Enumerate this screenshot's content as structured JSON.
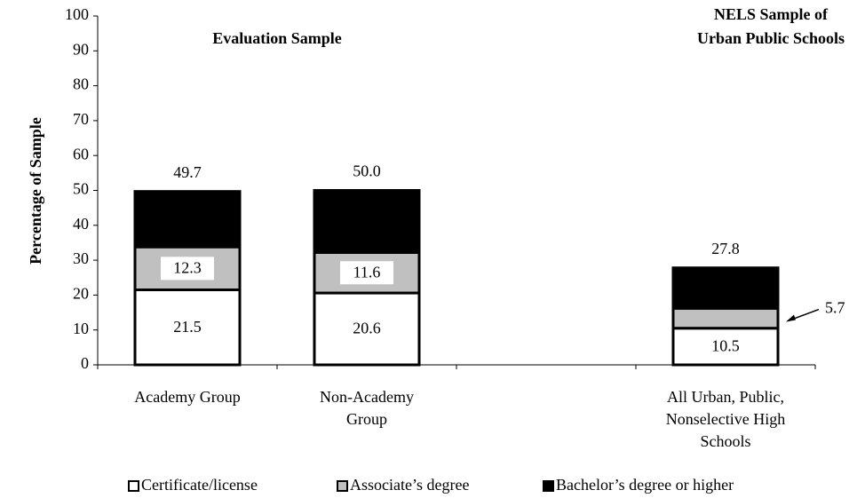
{
  "chart_data": {
    "type": "stacked_bar",
    "y_label": "Percentage of Sample",
    "annotations": [
      {
        "lines": [
          "Evaluation Sample"
        ]
      },
      {
        "lines": [
          "NELS Sample of",
          "Urban Public Schools"
        ]
      }
    ],
    "categories": [
      [
        "Academy Group"
      ],
      [
        "Non-Academy",
        "Group"
      ],
      null,
      [
        "All Urban, Public,",
        "Nonselective High",
        "Schools"
      ]
    ],
    "series": [
      {
        "name": "Certificate/license",
        "color": "#ffffff",
        "values": [
          21.5,
          20.6,
          null,
          10.5
        ]
      },
      {
        "name": "Associate’s degree",
        "color": "#c0c0c0",
        "values": [
          12.3,
          11.6,
          null,
          5.7
        ]
      },
      {
        "name": "Bachelor’s degree or higher",
        "color": "#000000",
        "values": [
          15.9,
          17.8,
          null,
          11.6
        ]
      }
    ],
    "totals": [
      49.7,
      50,
      null,
      27.8
    ],
    "total_labels": [
      "49.7",
      "50.0",
      null,
      "27.8"
    ],
    "ylim": [
      0,
      100
    ],
    "yticks": [
      0,
      10,
      20,
      30,
      40,
      50,
      60,
      70,
      80,
      90,
      100
    ]
  }
}
